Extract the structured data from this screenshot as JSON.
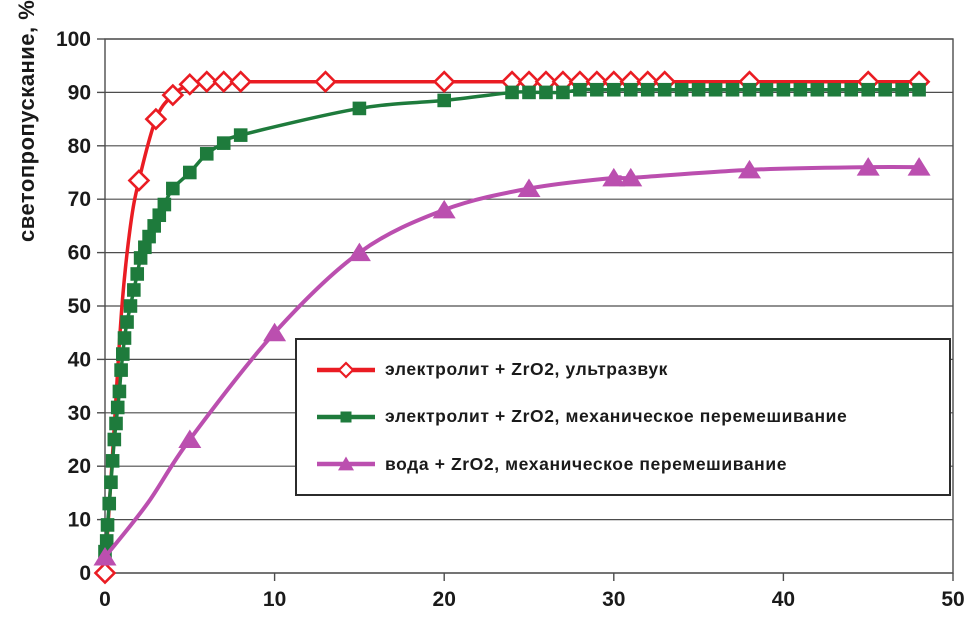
{
  "chart_data": {
    "type": "line",
    "title": "",
    "xlabel": "",
    "ylabel": "светопропускание, %",
    "xlim": [
      0,
      50
    ],
    "ylim": [
      0,
      100
    ],
    "x_ticks": [
      0,
      10,
      20,
      30,
      40,
      50
    ],
    "y_ticks": [
      0,
      10,
      20,
      30,
      40,
      50,
      60,
      70,
      80,
      90,
      100
    ],
    "grid": "horizontal-only",
    "plot_border": true,
    "grid_color": "#4d4d4d",
    "legend_position": "inside-lower-right",
    "series": [
      {
        "name": "электролит + ZrO2, ультразвук",
        "color": "#EA1C23",
        "marker": "open-diamond",
        "line_width": 3.5,
        "points": [
          [
            0,
            0
          ],
          [
            2,
            73.5
          ],
          [
            3,
            85
          ],
          [
            4,
            89.5
          ],
          [
            5,
            91.5
          ],
          [
            6,
            92
          ],
          [
            7,
            92
          ],
          [
            8,
            92
          ],
          [
            13,
            92
          ],
          [
            20,
            92
          ],
          [
            24,
            92
          ],
          [
            25,
            92
          ],
          [
            26,
            92
          ],
          [
            27,
            92
          ],
          [
            28,
            92
          ],
          [
            29,
            92
          ],
          [
            30,
            92
          ],
          [
            31,
            92
          ],
          [
            32,
            92
          ],
          [
            33,
            92
          ],
          [
            38,
            92
          ],
          [
            45,
            92
          ],
          [
            48,
            92
          ]
        ],
        "extra_line_points": [
          [
            0.5,
            25
          ],
          [
            1,
            50
          ],
          [
            1.5,
            65
          ]
        ]
      },
      {
        "name": "электролит + ZrO2, механическое перемешивание",
        "color": "#1E7B3C",
        "marker": "filled-square",
        "line_width": 3.5,
        "points": [
          [
            0,
            4
          ],
          [
            0.1,
            6
          ],
          [
            0.15,
            9
          ],
          [
            0.25,
            13
          ],
          [
            0.35,
            17
          ],
          [
            0.45,
            21
          ],
          [
            0.55,
            25
          ],
          [
            0.65,
            28
          ],
          [
            0.75,
            31
          ],
          [
            0.85,
            34
          ],
          [
            0.95,
            38
          ],
          [
            1.05,
            41
          ],
          [
            1.15,
            44
          ],
          [
            1.3,
            47
          ],
          [
            1.5,
            50
          ],
          [
            1.7,
            53
          ],
          [
            1.9,
            56
          ],
          [
            2.1,
            59
          ],
          [
            2.35,
            61
          ],
          [
            2.6,
            63
          ],
          [
            2.9,
            65
          ],
          [
            3.2,
            67
          ],
          [
            3.5,
            69
          ],
          [
            4,
            72
          ],
          [
            5,
            75
          ],
          [
            6,
            78.5
          ],
          [
            7,
            80.5
          ],
          [
            8,
            82
          ],
          [
            15,
            87
          ],
          [
            20,
            88.5
          ],
          [
            24,
            90
          ],
          [
            25,
            90
          ],
          [
            26,
            90
          ],
          [
            27,
            90
          ],
          [
            28,
            90.5
          ],
          [
            29,
            90.5
          ],
          [
            30,
            90.5
          ],
          [
            31,
            90.5
          ],
          [
            32,
            90.5
          ],
          [
            33,
            90.5
          ],
          [
            34,
            90.5
          ],
          [
            35,
            90.5
          ],
          [
            36,
            90.5
          ],
          [
            37,
            90.5
          ],
          [
            38,
            90.5
          ],
          [
            39,
            90.5
          ],
          [
            40,
            90.5
          ],
          [
            41,
            90.5
          ],
          [
            42,
            90.5
          ],
          [
            43,
            90.5
          ],
          [
            44,
            90.5
          ],
          [
            45,
            90.5
          ],
          [
            46,
            90.5
          ],
          [
            47,
            90.5
          ],
          [
            48,
            90.5
          ]
        ],
        "extra_line_points": []
      },
      {
        "name": "вода + ZrO2, механическое перемешивание",
        "color": "#BB4FAF",
        "marker": "filled-triangle",
        "line_width": 4,
        "points": [
          [
            0,
            3
          ],
          [
            5,
            25
          ],
          [
            10,
            45
          ],
          [
            15,
            60
          ],
          [
            20,
            68
          ],
          [
            25,
            72
          ],
          [
            30,
            74
          ],
          [
            31,
            74
          ],
          [
            38,
            75.5
          ],
          [
            45,
            76
          ],
          [
            48,
            76
          ]
        ],
        "extra_line_points": [
          [
            2.5,
            13
          ]
        ]
      }
    ]
  }
}
